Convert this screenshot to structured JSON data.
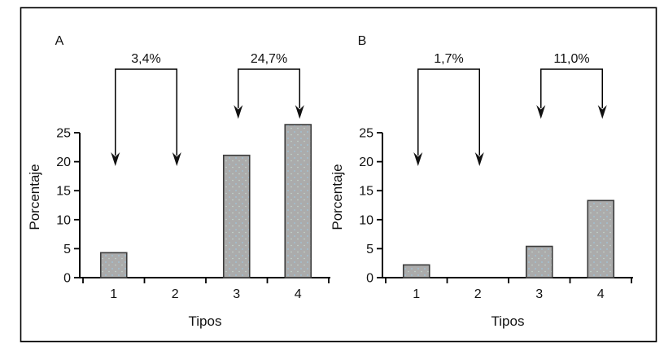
{
  "chart_data": [
    {
      "type": "bar",
      "panel_label": "A",
      "categories": [
        "1",
        "2",
        "3",
        "4"
      ],
      "values": [
        4.3,
        0,
        21.1,
        26.4
      ],
      "title": "",
      "xlabel": "Tipos",
      "ylabel": "Porcentaje",
      "ylim": [
        0,
        25
      ],
      "yticks": [
        0,
        5,
        10,
        15,
        20,
        25
      ],
      "ytick_labels": [
        "0",
        "5",
        "10",
        "15",
        "20",
        "25"
      ],
      "grid": false,
      "legend": false,
      "annotations": [
        {
          "label": "3,4%",
          "targets": [
            "1",
            "2"
          ]
        },
        {
          "label": "24,7%",
          "targets": [
            "3",
            "4"
          ]
        }
      ]
    },
    {
      "type": "bar",
      "panel_label": "B",
      "categories": [
        "1",
        "2",
        "3",
        "4"
      ],
      "values": [
        2.2,
        0,
        5.4,
        13.3
      ],
      "title": "",
      "xlabel": "Tipos",
      "ylabel": "Porcentaje",
      "ylim": [
        0,
        25
      ],
      "yticks": [
        0,
        5,
        10,
        15,
        20,
        25
      ],
      "ytick_labels": [
        "0",
        "5",
        "10",
        "15",
        "20",
        "25"
      ],
      "grid": false,
      "legend": false,
      "annotations": [
        {
          "label": "1,7%",
          "targets": [
            "1",
            "2"
          ]
        },
        {
          "label": "11,0%",
          "targets": [
            "3",
            "4"
          ]
        }
      ]
    }
  ],
  "colors": {
    "background": "#ffffff",
    "bar_fill": "#ababab",
    "bar_stipple_blue": "#9fc6dc",
    "bar_stipple_green": "#c2d8cf",
    "bar_border": "#3b3b3b",
    "line": "#000000",
    "text": "#111111"
  }
}
